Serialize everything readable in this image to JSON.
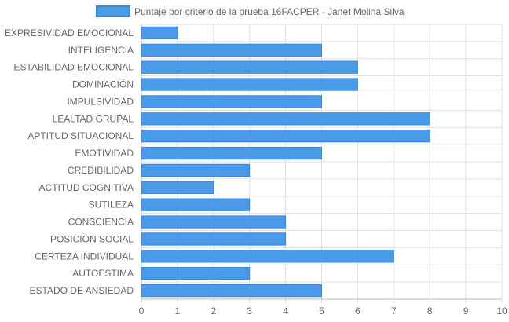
{
  "chart_data": {
    "type": "bar",
    "orientation": "horizontal",
    "categories": [
      "EXPRESIVIDAD EMOCIONAL",
      "INTELIGENCIA",
      "ESTABILIDAD EMOCIONAL",
      "DOMINACIÓN",
      "IMPULSIVIDAD",
      "LEALTAD GRUPAL",
      "APTITUD SITUACIONAL",
      "EMOTIVIDAD",
      "CREDIBILIDAD",
      "ACTITUD COGNITIVA",
      "SUTILEZA",
      "CONSCIENCIA",
      "POSICIÓN SOCIAL",
      "CERTEZA INDIVIDUAL",
      "AUTOESTIMA",
      "ESTADO DE ANSIEDAD"
    ],
    "series": [
      {
        "name": "Puntaje por criterio de la prueba 16FACPER - Janet Molina Silva",
        "values": [
          1,
          5,
          6,
          6,
          5,
          8,
          8,
          5,
          3,
          2,
          3,
          4,
          4,
          7,
          3,
          5
        ]
      }
    ],
    "xticks": [
      "0",
      "1",
      "2",
      "3",
      "4",
      "5",
      "6",
      "7",
      "8",
      "9",
      "10"
    ],
    "xlim": [
      0,
      10
    ],
    "grid": true,
    "legend_position": "top",
    "colors": {
      "bar_fill": "#4a9aea",
      "bar_stroke": "#3b86dd",
      "grid": "#e0e0e0",
      "axis": "#bdbdbd",
      "text": "#666666"
    }
  }
}
